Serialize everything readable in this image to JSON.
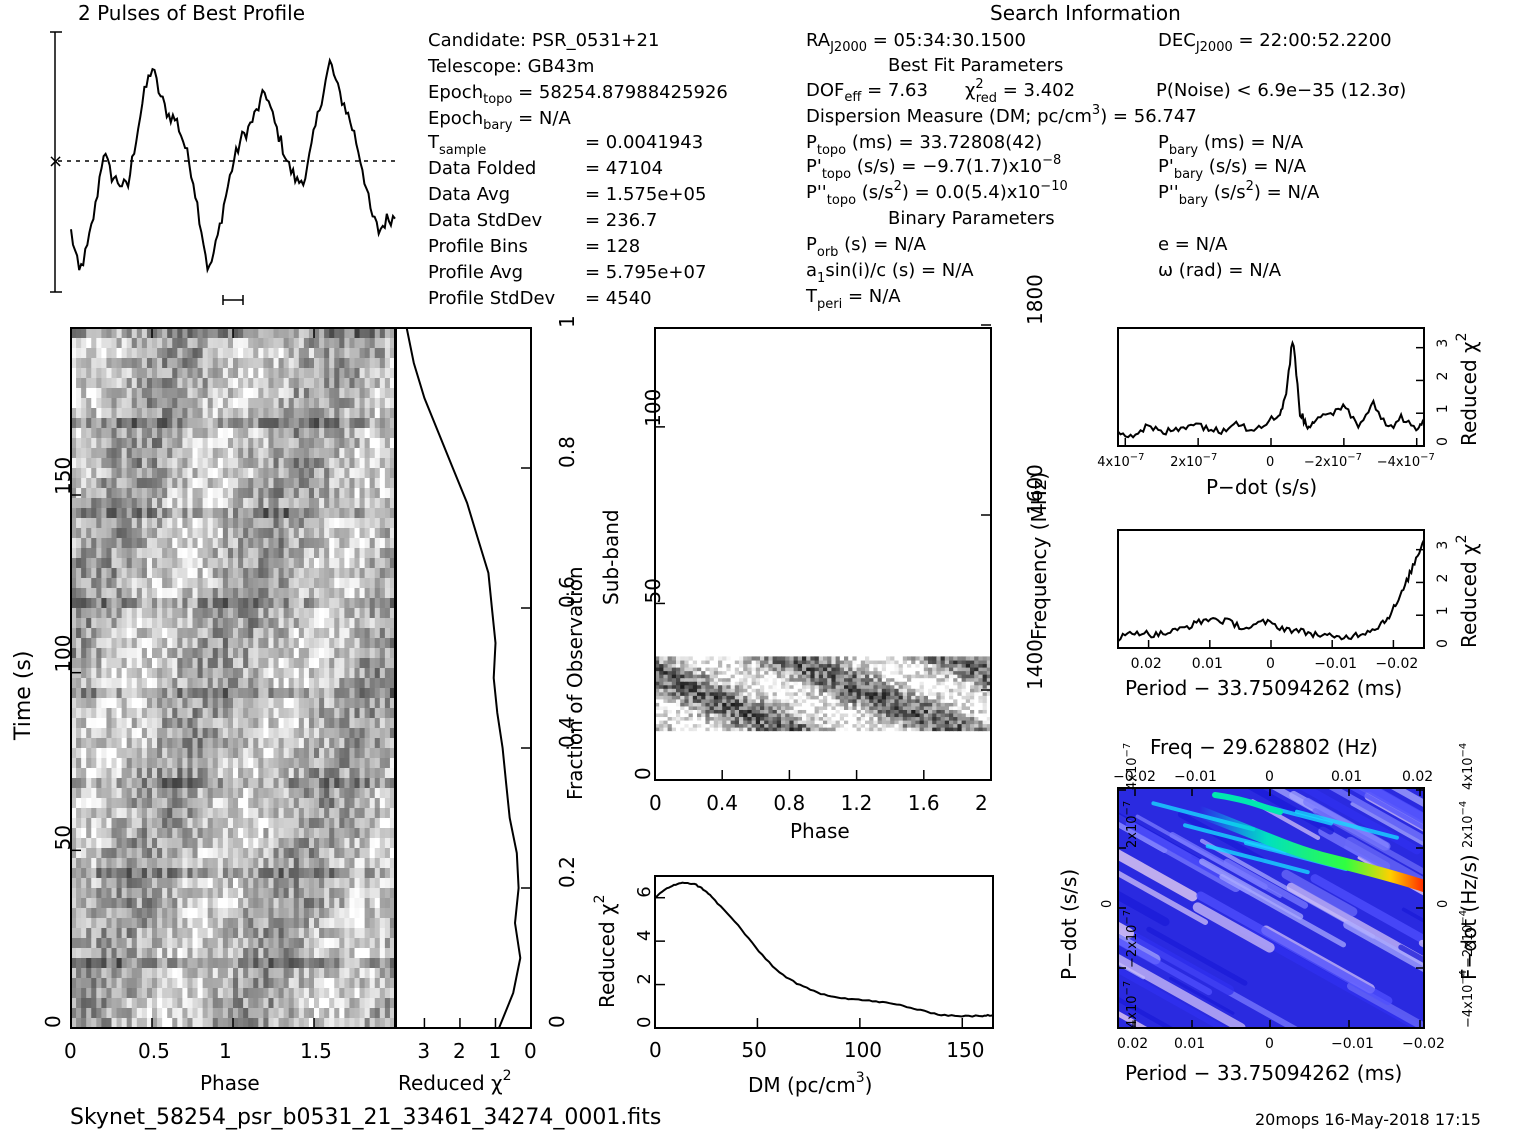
{
  "footer": {
    "filename": "Skynet_58254_psr_b0531_21_33461_34274_0001.fits",
    "stamp": "20mops 16-May-2018 17:15"
  },
  "header": {
    "profile_title": "2 Pulses of Best Profile",
    "search_title": "Search Information"
  },
  "info": {
    "candidate": "Candidate:  PSR_0531+21",
    "telescope": "Telescope:  GB43m",
    "epoch_topo": "Epoch",
    "epoch_topo_sub": "topo",
    "epoch_topo_val": " = 58254.87988425926",
    "epoch_bary": "Epoch",
    "epoch_bary_sub": "bary",
    "epoch_bary_val": " = N/A",
    "tsample": "T",
    "tsample_sub": "sample",
    "tsample_val": "=   0.0041943",
    "rows": [
      {
        "label": "Data Folded",
        "value": "=   47104"
      },
      {
        "label": "Data Avg",
        "value": "=   1.575e+05"
      },
      {
        "label": "Data StdDev",
        "value": "=   236.7"
      },
      {
        "label": "Profile Bins",
        "value": "=   128"
      },
      {
        "label": "Profile Avg",
        "value": "=   5.795e+07"
      },
      {
        "label": "Profile StdDev",
        "value": "=   4540"
      }
    ],
    "ra": "RA",
    "ra_sub": "J2000",
    "ra_val": " = 05:34:30.1500",
    "dec": "DEC",
    "dec_sub": "J2000",
    "dec_val": " = 22:00:52.2200",
    "best_fit": "Best Fit Parameters",
    "dof": "DOF",
    "dof_sub": "eff",
    "dof_val": " = 7.63",
    "chi": "χ",
    "chi_sup": "2",
    "chi_sub": "red",
    "chi_val": " = 3.402",
    "pnoise": "P(Noise) < 6.9e−35   (12.3σ)",
    "dm_line": "Dispersion Measure (DM; pc/cm",
    "dm_sup": "3",
    "dm_val": ") = 56.747",
    "ptopo": "P",
    "ptopo_sub": "topo",
    "ptopo_val": " (ms) =  33.72808(42)",
    "pbary": "P",
    "pbary_sub": "bary",
    "pbary_val": " (ms) = N/A",
    "pdtopo": "P'",
    "pdtopo_sub": "topo",
    "pdtopo_val": " (s/s) = −9.7(1.7)x10",
    "pdtopo_exp": "−8",
    "pdbary": "P'",
    "pdbary_sub": "bary",
    "pdbary_val": " (s/s) = N/A",
    "pddtopo": "P''",
    "pddtopo_sub": "topo",
    "pddtopo_val": " (s/s",
    "pddtopo_sup": "2",
    "pddtopo_val2": ") = 0.0(5.4)x10",
    "pddtopo_exp": "−10",
    "pddbary": "P''",
    "pddbary_sub": "bary",
    "pddbary_val": " (s/s",
    "pddbary_sup": "2",
    "pddbary_val2": ") = N/A",
    "binary": "Binary Parameters",
    "porb": "P",
    "porb_sub": "orb",
    "porb_val": " (s) = N/A",
    "e_val": "e = N/A",
    "a1": "a",
    "a1_sub": "1",
    "a1_val": "sin(i)/c (s) = N/A",
    "omega": "ω (rad) = N/A",
    "tperi": "T",
    "tperi_sub": "peri",
    "tperi_val": " = N/A"
  },
  "chart_data": [
    {
      "id": "profile",
      "type": "line",
      "title": "2 Pulses of Best Profile",
      "x": [
        0,
        0.05,
        0.1,
        0.15,
        0.2,
        0.25,
        0.3,
        0.35,
        0.4,
        0.45,
        0.5,
        0.55,
        0.6,
        0.65,
        0.7,
        0.75,
        0.8,
        0.85,
        0.9,
        0.95,
        1.0,
        1.05,
        1.1,
        1.15,
        1.2,
        1.25,
        1.3,
        1.35,
        1.4,
        1.45,
        1.5,
        1.55,
        1.6,
        1.65,
        1.7,
        1.75,
        1.8,
        1.85,
        1.9,
        1.95,
        2.0
      ],
      "y": [
        0.22,
        0.05,
        0.15,
        0.32,
        0.55,
        0.45,
        0.42,
        0.4,
        0.6,
        0.78,
        0.9,
        0.78,
        0.7,
        0.68,
        0.58,
        0.45,
        0.25,
        0.05,
        0.18,
        0.35,
        0.5,
        0.6,
        0.65,
        0.72,
        0.8,
        0.68,
        0.58,
        0.48,
        0.42,
        0.45,
        0.62,
        0.78,
        0.92,
        0.8,
        0.72,
        0.62,
        0.48,
        0.3,
        0.22,
        0.27,
        0.28
      ]
    },
    {
      "id": "time_phase",
      "type": "heatmap",
      "xlabel": "Phase",
      "ylabel": "Time (s)",
      "xticks": [
        "0",
        "0.5",
        "1",
        "1.5"
      ],
      "yticks": [
        "0",
        "50",
        "100",
        "150"
      ],
      "xlim": [
        0,
        2
      ],
      "ylim": [
        0,
        197
      ]
    },
    {
      "id": "time_chi",
      "type": "line",
      "xlabel": "Reduced χ",
      "xlabel_sup": "2",
      "ylabel": "Fraction of Observation",
      "xticks": [
        "3",
        "2",
        "1",
        "0"
      ],
      "yticks": [
        "0",
        "0.2",
        "0.4",
        "0.6",
        "0.8",
        "1"
      ],
      "xlim": [
        3.8,
        0
      ],
      "x": [
        0.9,
        0.5,
        0.3,
        0.45,
        0.35,
        0.4,
        0.6,
        0.7,
        0.8,
        0.95,
        1.05,
        1.0,
        1.1,
        1.2,
        1.5,
        1.8,
        2.2,
        2.6,
        3.0,
        3.3,
        3.5
      ],
      "frac": [
        0,
        0.05,
        0.1,
        0.15,
        0.2,
        0.25,
        0.3,
        0.35,
        0.4,
        0.45,
        0.5,
        0.55,
        0.6,
        0.65,
        0.7,
        0.75,
        0.8,
        0.85,
        0.9,
        0.95,
        1.0
      ]
    },
    {
      "id": "subband",
      "type": "heatmap",
      "xlabel": "Phase",
      "ylabel": "Sub-band",
      "right_label": "Frequency (MHz)",
      "xticks": [
        "0",
        "0.4",
        "0.8",
        "1.2",
        "1.6",
        "2"
      ],
      "yticks": [
        "0",
        "50",
        "100"
      ],
      "right_ticks": [
        "1400",
        "1600",
        "1800"
      ],
      "ylim": [
        0,
        128
      ],
      "band": [
        14,
        35
      ]
    },
    {
      "id": "dm",
      "type": "line",
      "xlabel": "DM (pc/cm",
      "xlabel_sup": "3",
      "xlabel_end": ")",
      "ylabel": "Reduced χ",
      "ylabel_sup": "2",
      "xticks": [
        "0",
        "50",
        "100",
        "150"
      ],
      "yticks": [
        "0",
        "2",
        "4",
        "6"
      ],
      "xlim": [
        0,
        165
      ],
      "ylim": [
        0,
        7
      ],
      "x": [
        0,
        5,
        10,
        15,
        20,
        25,
        30,
        40,
        50,
        60,
        70,
        80,
        90,
        100,
        110,
        120,
        130,
        140,
        150,
        160,
        165
      ],
      "y": [
        6.0,
        6.4,
        6.6,
        6.7,
        6.6,
        6.3,
        5.8,
        4.8,
        3.6,
        2.6,
        2.0,
        1.6,
        1.4,
        1.3,
        1.2,
        1.05,
        0.8,
        0.6,
        0.55,
        0.55,
        0.6
      ]
    },
    {
      "id": "pdot",
      "type": "line",
      "xlabel": "P−dot (s/s)",
      "ylabel": "Reduced χ",
      "ylabel_sup": "2",
      "xticks": [
        "4x10",
        "2x10",
        "0",
        "−2x10",
        "−4x10"
      ],
      "xtick_exp": "−7",
      "yticks": [
        "0",
        "1",
        "2",
        "3"
      ],
      "xlim": [
        4.2e-07,
        -4.2e-07
      ],
      "ylim": [
        0,
        3.6
      ],
      "x": [
        4.2,
        3.8,
        3.4,
        3.0,
        2.6,
        2.2,
        1.8,
        1.4,
        1.0,
        0.6,
        0.2,
        -0.2,
        -0.4,
        -0.6,
        -0.8,
        -1.0,
        -1.2,
        -1.6,
        -2.0,
        -2.4,
        -2.8,
        -3.2,
        -3.6,
        -4.0,
        -4.2
      ],
      "y": [
        0.5,
        0.3,
        0.6,
        0.4,
        0.5,
        0.7,
        0.6,
        0.4,
        0.8,
        0.5,
        0.7,
        0.9,
        1.5,
        3.3,
        1.0,
        0.6,
        0.8,
        0.9,
        1.3,
        0.6,
        1.4,
        0.5,
        0.9,
        0.4,
        0.9
      ]
    },
    {
      "id": "period",
      "type": "line",
      "xlabel": "Period − 33.75094262 (ms)",
      "ylabel": "Reduced χ",
      "ylabel_sup": "2",
      "xticks": [
        "0.02",
        "0.01",
        "0",
        "−0.01",
        "−0.02"
      ],
      "yticks": [
        "0",
        "1",
        "2",
        "3"
      ],
      "xlim": [
        0.025,
        -0.025
      ],
      "ylim": [
        0,
        3.6
      ],
      "x": [
        0.025,
        0.022,
        0.019,
        0.016,
        0.013,
        0.01,
        0.007,
        0.004,
        0.001,
        -0.002,
        -0.005,
        -0.008,
        -0.011,
        -0.014,
        -0.017,
        -0.019,
        -0.021,
        -0.023,
        -0.025
      ],
      "y": [
        0.3,
        0.5,
        0.4,
        0.5,
        0.7,
        0.9,
        0.8,
        0.6,
        0.8,
        0.6,
        0.5,
        0.4,
        0.3,
        0.4,
        0.6,
        0.9,
        1.5,
        2.4,
        3.3
      ]
    },
    {
      "id": "ppdot",
      "type": "heatmap",
      "title": "Freq − 29.628802 (Hz)",
      "xlabel": "Period − 33.75094262 (ms)",
      "ylabel": "P−dot (s/s)",
      "right_label": "F−dot (Hz/s)",
      "xticks": [
        "0.02",
        "0.01",
        "0",
        "−0.01",
        "−0.02"
      ],
      "top_ticks": [
        "−0.02",
        "−0.01",
        "0",
        "0.01",
        "0.02"
      ],
      "yticks": [
        "4x10",
        "−2x10",
        "0",
        "2x10",
        "4x10"
      ],
      "ytick_exp": "−7",
      "right_ticks": [
        "−4x10",
        "−2x10",
        "0",
        "2x10",
        "4x10"
      ],
      "right_exp": "−4",
      "colors": {
        "low": "#1a1aff",
        "mid": "#00e0ff",
        "high": "#ff2a00",
        "pale": "#f2d6f2"
      }
    }
  ]
}
